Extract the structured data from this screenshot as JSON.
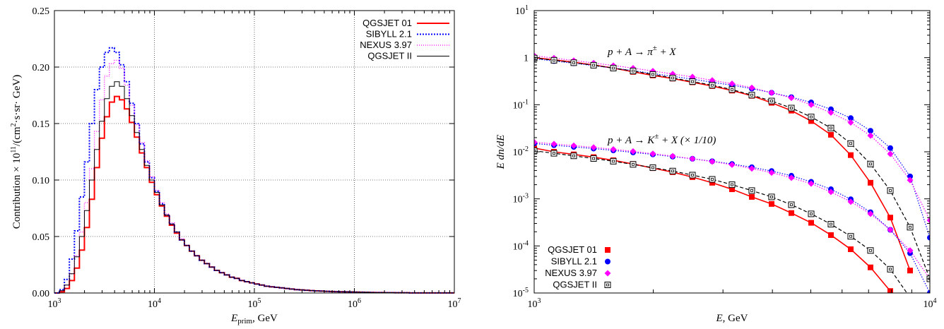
{
  "chart_data": [
    {
      "type": "line",
      "x_scale": "log",
      "xlim": [
        1000,
        10000000
      ],
      "ylim": [
        0,
        0.25
      ],
      "grid": true,
      "legend_position": "top-right",
      "xlabel": "E",
      "xlabel_sub": "prim",
      "xlabel_unit": ", GeV",
      "ylabel": "Contribution × 10",
      "ylabel_exp": "11",
      "ylabel_rest": "/(cm",
      "ylabel_exp2": "2",
      "ylabel_tail": "·s·sr· GeV)",
      "x_ticks": [
        {
          "base": "10",
          "exp": "3"
        },
        {
          "base": "10",
          "exp": "4"
        },
        {
          "base": "10",
          "exp": "5"
        },
        {
          "base": "10",
          "exp": "6"
        },
        {
          "base": "10",
          "exp": "7"
        }
      ],
      "y_ticks": [
        "0.00",
        "0.05",
        "0.10",
        "0.15",
        "0.20",
        "0.25"
      ],
      "bins_per_decade": 20,
      "series": [
        {
          "name": "QGSJET 01",
          "color": "#ff0000",
          "dash": "",
          "width": 2,
          "values": [
            0.0,
            0.001,
            0.004,
            0.011,
            0.022,
            0.038,
            0.058,
            0.083,
            0.111,
            0.137,
            0.156,
            0.169,
            0.174,
            0.171,
            0.163,
            0.151,
            0.138,
            0.124,
            0.111,
            0.098,
            0.087,
            0.077,
            0.068,
            0.06,
            0.053,
            0.047,
            0.042,
            0.037,
            0.033,
            0.029,
            0.026,
            0.023,
            0.02,
            0.018,
            0.016,
            0.014,
            0.013,
            0.011,
            0.01,
            0.009,
            0.008,
            0.007,
            0.006,
            0.0055,
            0.005,
            0.0045,
            0.004,
            0.0035,
            0.003,
            0.0027,
            0.0024,
            0.0021,
            0.0019,
            0.0017,
            0.0015,
            0.0013,
            0.0012,
            0.0011,
            0.001,
            0.0009,
            0.0008,
            0.0007,
            0.0006,
            0.0005,
            0.0004,
            0.0004,
            0.0003,
            0.0003,
            0.0002,
            0.0002,
            0.0002,
            0.0001,
            0.0001,
            0.0001,
            0.0001,
            0.0001,
            0.0001,
            0.0001,
            0.0001,
            0.0001
          ]
        },
        {
          "name": "SIBYLL 2.1",
          "color": "#0000ff",
          "dash": "2,2",
          "width": 2,
          "values": [
            0.0,
            0.003,
            0.012,
            0.03,
            0.055,
            0.085,
            0.116,
            0.15,
            0.18,
            0.2,
            0.213,
            0.217,
            0.213,
            0.202,
            0.187,
            0.168,
            0.15,
            0.132,
            0.116,
            0.102,
            0.09,
            0.079,
            0.069,
            0.061,
            0.054,
            0.047,
            0.042,
            0.037,
            0.033,
            0.029,
            0.026,
            0.023,
            0.02,
            0.018,
            0.016,
            0.014,
            0.013,
            0.011,
            0.01,
            0.009,
            0.008,
            0.007,
            0.006,
            0.0055,
            0.005,
            0.0045,
            0.004,
            0.0035,
            0.003,
            0.0027,
            0.0024,
            0.0021,
            0.0019,
            0.0017,
            0.0015,
            0.0013,
            0.0012,
            0.0011,
            0.001,
            0.0009,
            0.0008,
            0.0007,
            0.0006,
            0.0005,
            0.0004,
            0.0004,
            0.0003,
            0.0003,
            0.0002,
            0.0002,
            0.0002,
            0.0001,
            0.0001,
            0.0001,
            0.0001,
            0.0001,
            0.0001,
            0.0001,
            0.0001,
            0.0001
          ]
        },
        {
          "name": "NEXUS 3.97",
          "color": "#ff00ff",
          "dash": "1,2",
          "width": 1.3,
          "values": [
            0.0,
            0.002,
            0.007,
            0.017,
            0.033,
            0.054,
            0.08,
            0.11,
            0.143,
            0.171,
            0.192,
            0.203,
            0.206,
            0.199,
            0.184,
            0.166,
            0.149,
            0.133,
            0.117,
            0.103,
            0.091,
            0.08,
            0.07,
            0.062,
            0.054,
            0.048,
            0.042,
            0.037,
            0.033,
            0.029,
            0.026,
            0.023,
            0.02,
            0.018,
            0.016,
            0.014,
            0.013,
            0.011,
            0.01,
            0.009,
            0.008,
            0.007,
            0.006,
            0.0055,
            0.005,
            0.0045,
            0.004,
            0.0035,
            0.003,
            0.0027,
            0.0024,
            0.0021,
            0.0019,
            0.0017,
            0.0015,
            0.0013,
            0.0012,
            0.0011,
            0.001,
            0.0009,
            0.0008,
            0.0007,
            0.0006,
            0.0005,
            0.0004,
            0.0004,
            0.0003,
            0.0003,
            0.0002,
            0.0002,
            0.0002,
            0.0001,
            0.0001,
            0.0001,
            0.0001,
            0.0001,
            0.0001,
            0.0001,
            0.0001,
            0.0001
          ]
        },
        {
          "name": "QGSJET II",
          "color": "#000000",
          "dash": "",
          "width": 1,
          "values": [
            0.0,
            0.002,
            0.007,
            0.017,
            0.032,
            0.05,
            0.073,
            0.1,
            0.127,
            0.152,
            0.172,
            0.183,
            0.187,
            0.183,
            0.172,
            0.157,
            0.142,
            0.127,
            0.113,
            0.1,
            0.089,
            0.078,
            0.069,
            0.061,
            0.054,
            0.047,
            0.042,
            0.037,
            0.033,
            0.029,
            0.026,
            0.023,
            0.02,
            0.018,
            0.016,
            0.014,
            0.013,
            0.011,
            0.01,
            0.009,
            0.008,
            0.007,
            0.006,
            0.0055,
            0.005,
            0.0045,
            0.004,
            0.0035,
            0.003,
            0.0027,
            0.0024,
            0.0021,
            0.0019,
            0.0017,
            0.0015,
            0.0013,
            0.0012,
            0.0011,
            0.001,
            0.0009,
            0.0008,
            0.0007,
            0.0006,
            0.0005,
            0.0004,
            0.0004,
            0.0003,
            0.0003,
            0.0002,
            0.0002,
            0.0002,
            0.0001,
            0.0001,
            0.0001,
            0.0001,
            0.0001,
            0.0001,
            0.0001,
            0.0001,
            0.0001
          ]
        }
      ]
    },
    {
      "type": "scatter",
      "x_scale": "log",
      "y_scale": "log",
      "xlim": [
        1000,
        10000
      ],
      "ylim": [
        1e-05,
        10
      ],
      "grid": false,
      "legend_position": "bottom-left",
      "xlabel": "E,",
      "xlabel_unit": " GeV",
      "ylabel": "E dn/dE",
      "x_ticks": [
        {
          "base": "10",
          "exp": "3"
        },
        {
          "base": "10",
          "exp": "4"
        }
      ],
      "y_ticks": [
        {
          "base": "10",
          "exp": "-5"
        },
        {
          "base": "10",
          "exp": "-4"
        },
        {
          "base": "10",
          "exp": "-3"
        },
        {
          "base": "10",
          "exp": "-2"
        },
        {
          "base": "10",
          "exp": "-1"
        },
        {
          "base": "1",
          "exp": ""
        },
        {
          "base": "10",
          "exp": "1"
        }
      ],
      "annotations": [
        {
          "text": "p + A → π",
          "sup": "±",
          "rest": " + X"
        },
        {
          "text": "p + A → K",
          "sup": "±",
          "rest": " + X (× 1/10)"
        }
      ],
      "x": [
        1000,
        1122,
        1259,
        1413,
        1585,
        1778,
        1995,
        2239,
        2512,
        2818,
        3162,
        3548,
        3981,
        4467,
        5012,
        5623,
        6310,
        7079,
        7943,
        8913,
        10000
      ],
      "series": [
        {
          "name": "QGSJET 01",
          "color": "#ff0000",
          "marker": "square-filled",
          "line": "solid",
          "pi": [
            1.0,
            0.9,
            0.8,
            0.7,
            0.6,
            0.5,
            0.42,
            0.36,
            0.3,
            0.25,
            0.2,
            0.155,
            0.11,
            0.075,
            0.045,
            0.023,
            0.0085,
            0.0022,
            0.0004,
            3e-05,
            null
          ],
          "k": [
            0.012,
            0.01,
            0.0088,
            0.0077,
            0.0066,
            0.0055,
            0.0045,
            0.0037,
            0.0029,
            0.0022,
            0.0016,
            0.0011,
            0.00078,
            0.0005,
            0.00031,
            0.00017,
            8.5e-05,
            3.5e-05,
            1.1e-05,
            null,
            null
          ]
        },
        {
          "name": "SIBYLL 2.1",
          "color": "#0000ff",
          "marker": "circle-filled",
          "line": "dotted",
          "pi": [
            0.95,
            0.85,
            0.76,
            0.68,
            0.6,
            0.53,
            0.46,
            0.4,
            0.35,
            0.3,
            0.26,
            0.22,
            0.18,
            0.145,
            0.112,
            0.08,
            0.052,
            0.028,
            0.012,
            0.003,
            0.00015
          ],
          "k": [
            0.015,
            0.0138,
            0.0127,
            0.0117,
            0.0107,
            0.0097,
            0.0088,
            0.0079,
            0.0071,
            0.0063,
            0.0055,
            0.0047,
            0.0039,
            0.0031,
            0.0023,
            0.0016,
            0.00098,
            0.00052,
            0.00022,
            7e-05,
            1e-05
          ]
        },
        {
          "name": "NEXUS 3.97",
          "color": "#ff00ff",
          "marker": "diamond-filled",
          "line": "dotted",
          "pi": [
            1.1,
            0.98,
            0.87,
            0.77,
            0.68,
            0.6,
            0.52,
            0.45,
            0.39,
            0.33,
            0.28,
            0.23,
            0.18,
            0.14,
            0.1,
            0.068,
            0.042,
            0.022,
            0.009,
            0.0025,
            0.00035
          ],
          "k": [
            0.016,
            0.0147,
            0.0135,
            0.0124,
            0.0113,
            0.0102,
            0.0091,
            0.0081,
            0.0071,
            0.0062,
            0.0053,
            0.0044,
            0.0036,
            0.0028,
            0.0021,
            0.0014,
            0.00087,
            0.00048,
            0.00022,
            8e-05,
            2e-05
          ]
        },
        {
          "name": "QGSJET II",
          "color": "#000000",
          "marker": "square-open",
          "line": "dashed",
          "pi": [
            0.98,
            0.88,
            0.78,
            0.69,
            0.6,
            0.52,
            0.44,
            0.37,
            0.31,
            0.26,
            0.21,
            0.16,
            0.12,
            0.085,
            0.055,
            0.032,
            0.015,
            0.0055,
            0.0015,
            0.00025,
            2e-05
          ],
          "k": [
            0.0105,
            0.0093,
            0.0082,
            0.0072,
            0.0063,
            0.0054,
            0.0046,
            0.0039,
            0.0032,
            0.0026,
            0.002,
            0.0015,
            0.0011,
            0.00075,
            0.00048,
            0.00029,
            0.00016,
            8e-05,
            3.2e-05,
            8e-06,
            null
          ]
        }
      ]
    }
  ]
}
